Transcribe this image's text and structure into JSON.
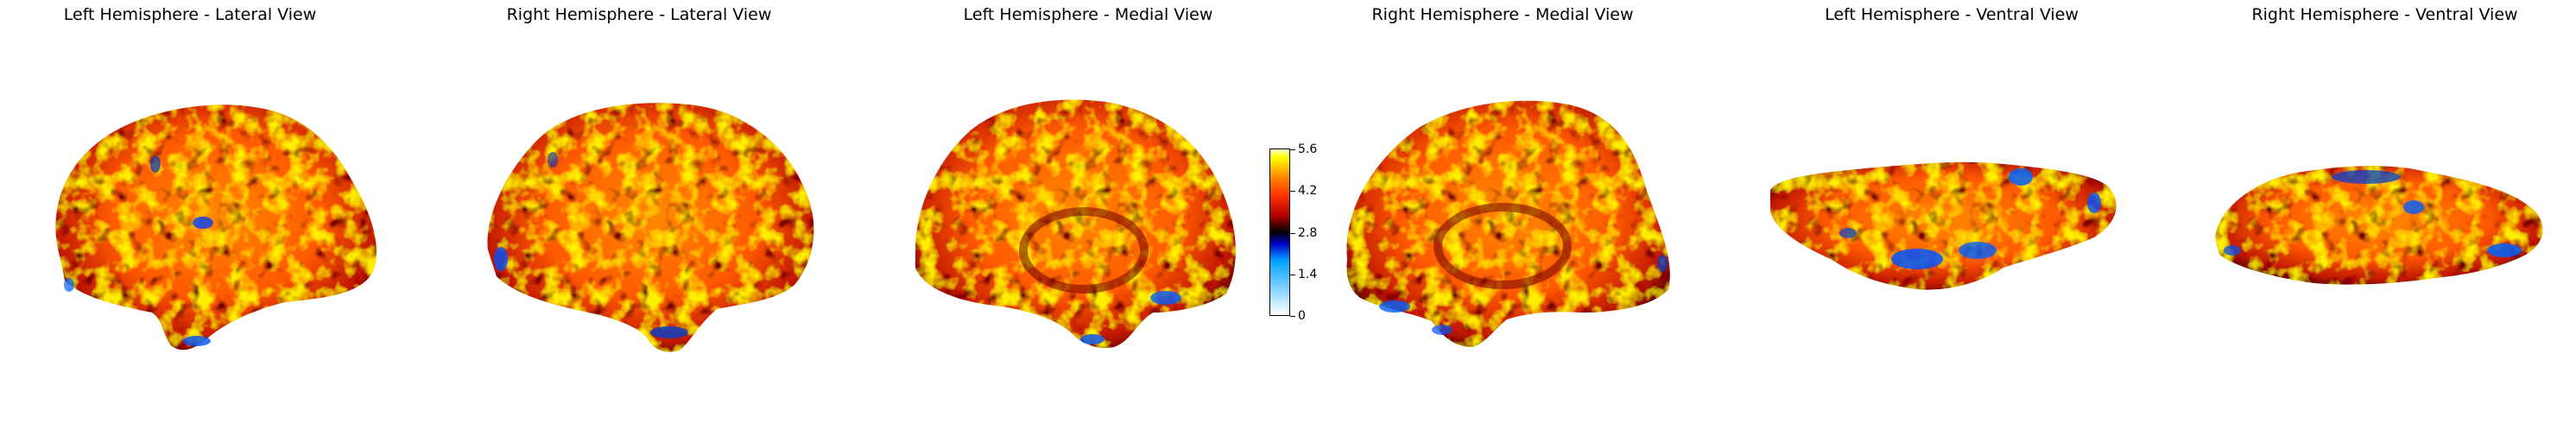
{
  "panels": [
    {
      "title": "Left Hemisphere - Lateral View"
    },
    {
      "title": "Right Hemisphere - Lateral View"
    },
    {
      "title": "Left Hemisphere - Medial View"
    },
    {
      "title": "Right Hemisphere - Medial View"
    },
    {
      "title": "Left Hemisphere - Ventral View"
    },
    {
      "title": "Right Hemisphere - Ventral View"
    }
  ],
  "colorbar": {
    "ticks": [
      "0",
      "1.4",
      "2.8",
      "4.2",
      "5.6"
    ],
    "range": [
      0,
      5.6
    ],
    "colormap": [
      "#ffffff",
      "#00a0ff",
      "#0000c8",
      "#000000",
      "#b00000",
      "#ff3000",
      "#ff9000",
      "#ffff00",
      "#ffffc8"
    ]
  },
  "colors": {
    "surface_base": "#ff6a00",
    "dark_sulci": "#3a0000",
    "bright": "#ffe000",
    "low_values": "#0050ff"
  }
}
